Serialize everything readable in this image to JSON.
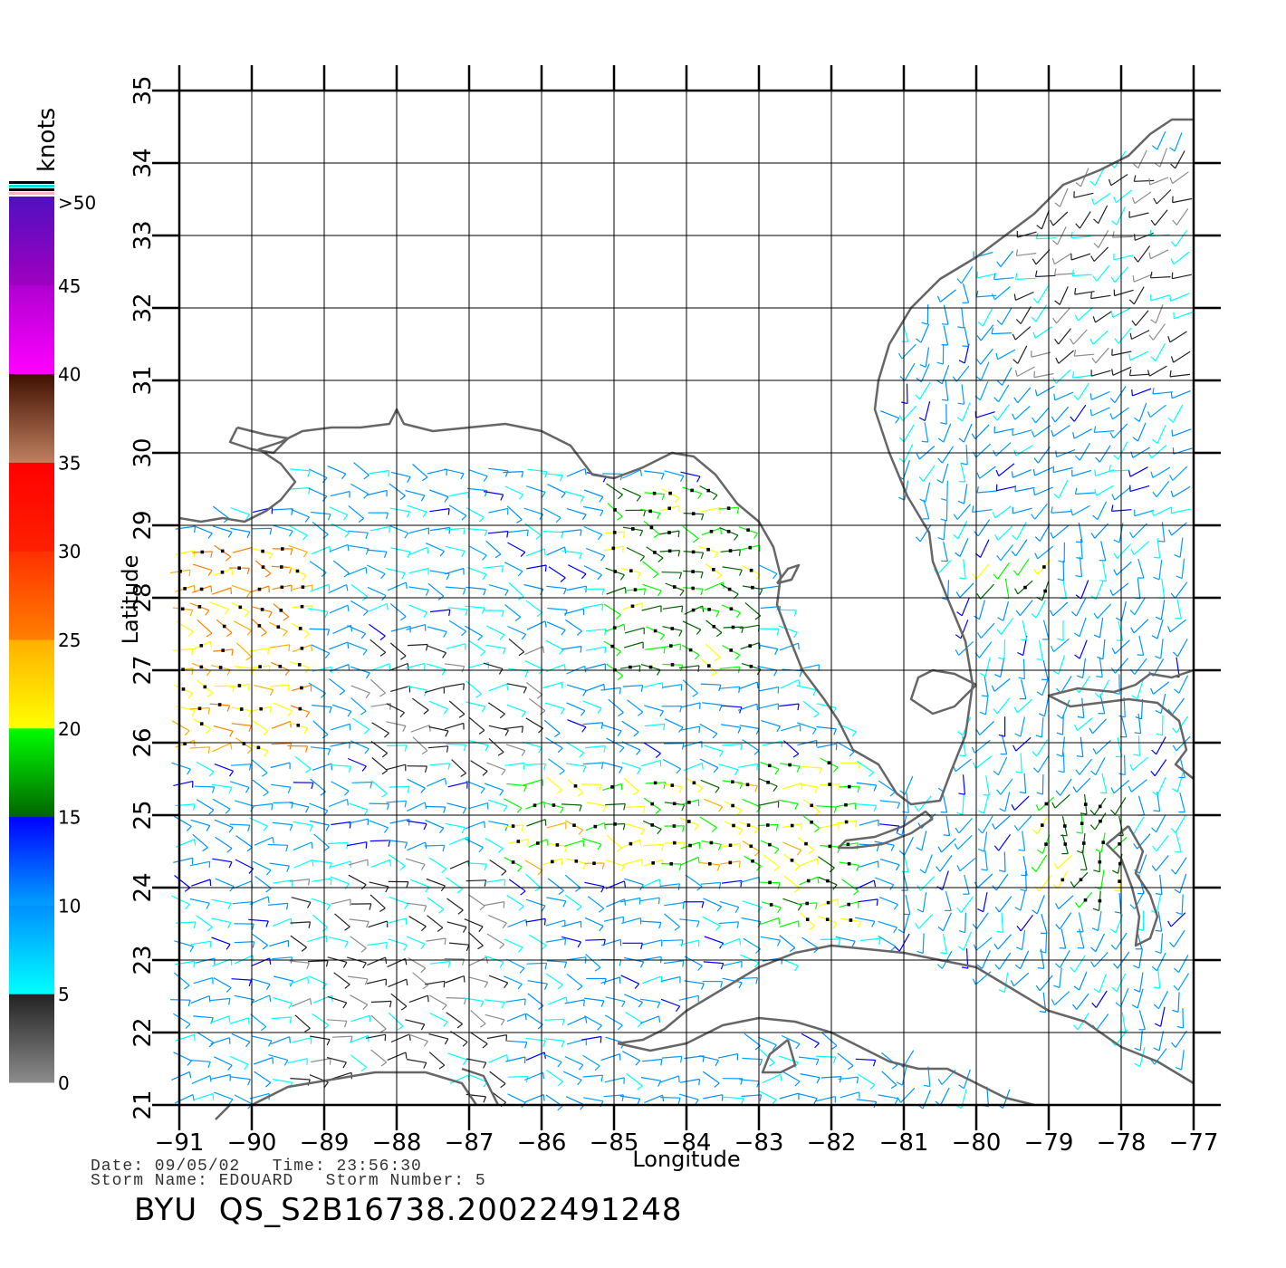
{
  "figure": {
    "xlabel": "Longitude",
    "ylabel": "Latitude",
    "date_label": "Date: 09/05/02   Time: 23:56:30",
    "storm_label": "Storm Name: EDOUARD   Storm Number: 5",
    "product_id": "BYU  QS_S2B16738.20022491248"
  },
  "colorbar": {
    "unit": "knots",
    "tick_labels": [
      "0",
      "5",
      "10",
      "15",
      "20",
      "25",
      "30",
      "35",
      "40",
      "45",
      ">50"
    ],
    "bands": [
      {
        "from": 0,
        "to": 5,
        "color_low": "#8c8c8c",
        "color_high": "#222222"
      },
      {
        "from": 5,
        "to": 10,
        "color_low": "#00ffff",
        "color_high": "#0090ff"
      },
      {
        "from": 10,
        "to": 15,
        "color_low": "#00a0ff",
        "color_high": "#0000ff"
      },
      {
        "from": 15,
        "to": 20,
        "color_low": "#006400",
        "color_high": "#00ff00"
      },
      {
        "from": 20,
        "to": 25,
        "color_low": "#ffff00",
        "color_high": "#ffb000"
      },
      {
        "from": 25,
        "to": 30,
        "color_low": "#ff8000",
        "color_high": "#ff3000"
      },
      {
        "from": 30,
        "to": 35,
        "color_low": "#ff2000",
        "color_high": "#ff0000"
      },
      {
        "from": 35,
        "to": 40,
        "color_low": "#c08060",
        "color_high": "#401000"
      },
      {
        "from": 40,
        "to": 45,
        "color_low": "#ff00ff",
        "color_high": "#b000d0"
      },
      {
        "from": 45,
        "to": 50,
        "color_low": "#a000c0",
        "color_high": "#5010c0"
      }
    ]
  },
  "chart_data": {
    "type": "map",
    "x_ticks": [
      "−91",
      "−90",
      "−89",
      "−88",
      "−87",
      "−86",
      "−85",
      "−84",
      "−83",
      "−82",
      "−81",
      "−80",
      "−79",
      "−78",
      "−77"
    ],
    "y_ticks": [
      "21",
      "22",
      "23",
      "24",
      "25",
      "26",
      "27",
      "28",
      "29",
      "30",
      "31",
      "32",
      "33",
      "34",
      "35"
    ],
    "xlim": [
      -91,
      -77
    ],
    "ylim": [
      21,
      35
    ],
    "grid": true,
    "coastline_color": "#666666",
    "wind_regions": [
      {
        "lon": [
          -91,
          -89.2
        ],
        "lat": [
          25.8,
          28.8
        ],
        "speed_kt": 24
      },
      {
        "lon": [
          -85.2,
          -83.0
        ],
        "lat": [
          27.0,
          29.5
        ],
        "speed_kt": 18
      },
      {
        "lon": [
          -86.5,
          -82.0
        ],
        "lat": [
          24.3,
          25.6
        ],
        "speed_kt": 20
      },
      {
        "lon": [
          -83.0,
          -81.6
        ],
        "lat": [
          23.4,
          25.8
        ],
        "speed_kt": 20
      },
      {
        "lon": [
          -80.0,
          -79.0
        ],
        "lat": [
          28.0,
          28.6
        ],
        "speed_kt": 18
      },
      {
        "lon": [
          -79.2,
          -78.0
        ],
        "lat": [
          23.8,
          25.3
        ],
        "speed_kt": 18
      },
      {
        "lon": [
          -89.5,
          -86.5
        ],
        "lat": [
          21.0,
          24.5
        ],
        "speed_kt": 4
      },
      {
        "lon": [
          -88.5,
          -86.0
        ],
        "lat": [
          25.5,
          27.5
        ],
        "speed_kt": 4
      },
      {
        "lon": [
          -79.5,
          -77.0
        ],
        "lat": [
          31.0,
          34.2
        ],
        "speed_kt": 4
      }
    ]
  }
}
